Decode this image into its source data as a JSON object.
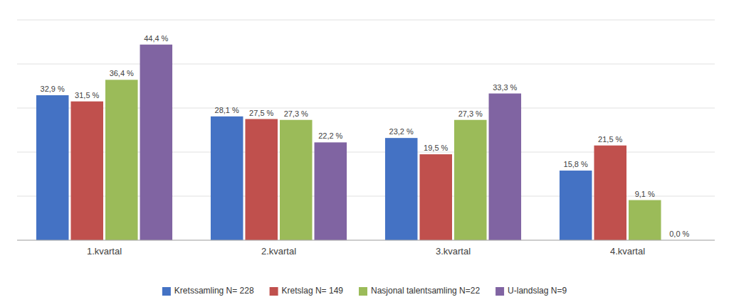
{
  "chart_data": {
    "type": "bar",
    "categories": [
      "1.kvartal",
      "2.kvartal",
      "3.kvartal",
      "4.kvartal"
    ],
    "series": [
      {
        "name": "Kretssamling N= 228",
        "color": "#4472C4",
        "values": [
          32.9,
          28.1,
          23.2,
          15.8
        ],
        "value_labels": [
          "32,9 %",
          "28,1 %",
          "23,2 %",
          "15,8 %"
        ]
      },
      {
        "name": "Kretslag N= 149",
        "color": "#C0504D",
        "values": [
          31.5,
          27.5,
          19.5,
          21.5
        ],
        "value_labels": [
          "31,5 %",
          "27,5 %",
          "19,5 %",
          "21,5 %"
        ]
      },
      {
        "name": "Nasjonal talentsamling N=22",
        "color": "#9BBB59",
        "values": [
          36.4,
          27.3,
          27.3,
          9.1
        ],
        "value_labels": [
          "36,4 %",
          "27,3 %",
          "27,3 %",
          "9,1 %"
        ]
      },
      {
        "name": "U-landslag N=9",
        "color": "#8064A2",
        "values": [
          44.4,
          22.2,
          33.3,
          0.0
        ],
        "value_labels": [
          "44,4 %",
          "22,2 %",
          "33,3 %",
          "0,0 %"
        ]
      }
    ],
    "ylim": [
      0,
      50
    ],
    "yticks": [
      0,
      10,
      20,
      30,
      40,
      50
    ],
    "grid": true,
    "legend": "bottom",
    "data_labels": true,
    "tick_labels": "x"
  }
}
